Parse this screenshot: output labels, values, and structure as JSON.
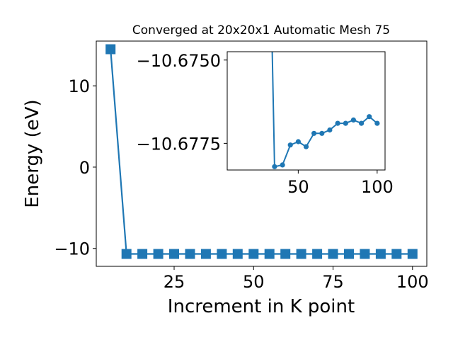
{
  "chart_data": [
    {
      "type": "line",
      "title": "Converged at 20x20x1 Automatic Mesh 75",
      "xlabel": "Increment in K point",
      "ylabel": "Energy (eV)",
      "xlim": [
        0.5,
        104.5
      ],
      "ylim": [
        -12.2,
        15.5
      ],
      "xticks": [
        25,
        50,
        75,
        100
      ],
      "yticks": [
        -10,
        0,
        10
      ],
      "xtick_labels": [
        "25",
        "50",
        "75",
        "100"
      ],
      "ytick_labels": [
        "−10",
        "0",
        "10"
      ],
      "marker": "square",
      "color": "#1f77b4",
      "grid": false,
      "x": [
        5,
        10,
        15,
        20,
        25,
        30,
        35,
        40,
        45,
        50,
        55,
        60,
        65,
        70,
        75,
        80,
        85,
        90,
        95,
        100
      ],
      "y": [
        14.5,
        -10.677,
        -10.679,
        -10.679,
        -10.678,
        -10.677,
        -10.677,
        -10.677,
        -10.677,
        -10.677,
        -10.677,
        -10.677,
        -10.677,
        -10.677,
        -10.677,
        -10.677,
        -10.677,
        -10.677,
        -10.677,
        -10.677
      ]
    },
    {
      "type": "line",
      "title": "",
      "inset": true,
      "xlim": [
        5,
        105
      ],
      "ylim": [
        -10.67475,
        -10.6783
      ],
      "xticks": [
        50,
        100
      ],
      "yticks": [
        -10.6775,
        -10.675
      ],
      "xtick_labels": [
        "50",
        "100"
      ],
      "ytick_labels": [
        "−10.6775",
        "−10.6750"
      ],
      "marker": "circle",
      "color": "#1f77b4",
      "grid": false,
      "x": [
        35,
        40,
        45,
        50,
        55,
        60,
        65,
        70,
        75,
        80,
        85,
        90,
        95,
        100
      ],
      "y": [
        -10.6782,
        -10.67815,
        -10.67755,
        -10.67745,
        -10.6776,
        -10.6772,
        -10.6772,
        -10.6771,
        -10.6769,
        -10.6769,
        -10.6768,
        -10.6769,
        -10.6767,
        -10.6769
      ],
      "y_extends_beyond_axes": true
    }
  ]
}
